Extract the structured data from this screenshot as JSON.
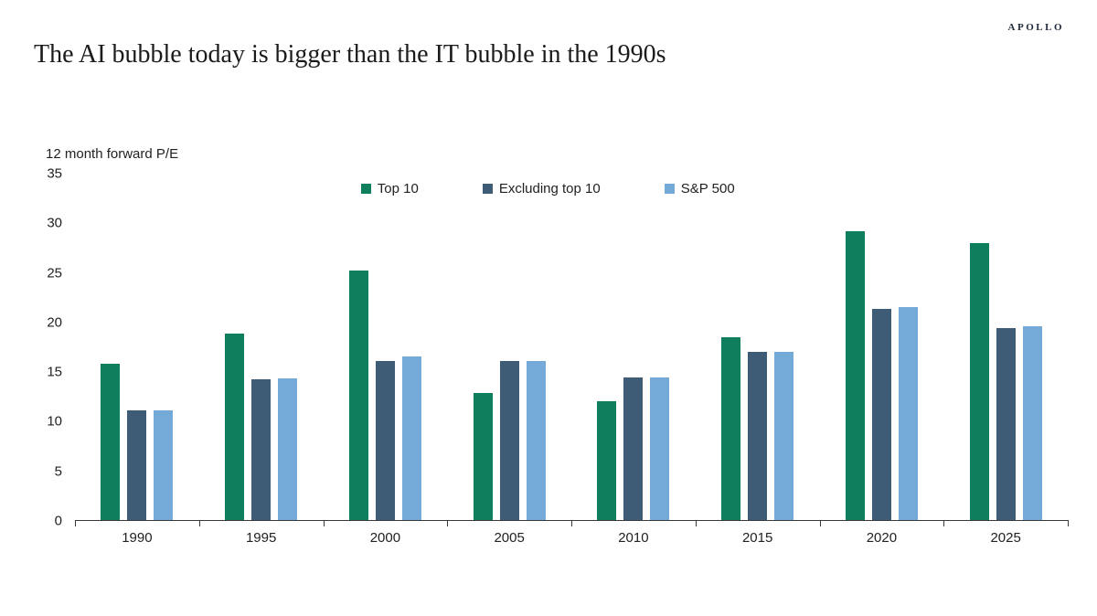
{
  "header": {
    "logo": "APOLLO",
    "title": "The AI bubble today is bigger than the IT bubble in the 1990s"
  },
  "chart_data": {
    "type": "bar",
    "title": "The AI bubble today is bigger than the IT bubble in the 1990s",
    "ylabel": "12 month forward P/E",
    "xlabel": "",
    "categories": [
      "1990",
      "1995",
      "2000",
      "2005",
      "2010",
      "2015",
      "2020",
      "2025"
    ],
    "series": [
      {
        "name": "Top 10",
        "color": "#0e7e5d",
        "values": [
          15.8,
          18.8,
          25.2,
          12.8,
          12.0,
          18.5,
          29.2,
          28.0
        ]
      },
      {
        "name": "Excluding top 10",
        "color": "#3e5c76",
        "values": [
          11.1,
          14.2,
          16.1,
          16.1,
          14.4,
          17.0,
          21.3,
          19.4
        ]
      },
      {
        "name": "S&P 500",
        "color": "#74aad8",
        "values": [
          11.1,
          14.3,
          16.5,
          16.1,
          14.4,
          17.0,
          21.5,
          19.6
        ]
      }
    ],
    "ylim": [
      0,
      35
    ],
    "yticks": [
      0,
      5,
      10,
      15,
      20,
      25,
      30,
      35
    ],
    "grid": false,
    "legend_position": "top-center-inside"
  }
}
